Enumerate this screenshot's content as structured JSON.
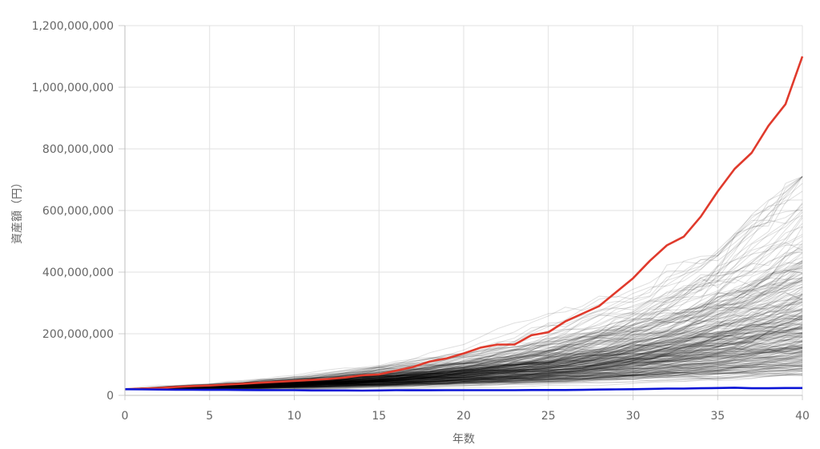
{
  "chart_data": {
    "type": "line",
    "xlabel": "年数",
    "ylabel": "資産額（円）",
    "xlim": [
      0,
      40
    ],
    "ylim": [
      0,
      1200000000
    ],
    "grid": true,
    "x_ticks": [
      "0",
      "5",
      "10",
      "15",
      "20",
      "25",
      "30",
      "35",
      "40"
    ],
    "y_ticks": [
      "0",
      "200,000,000",
      "400,000,000",
      "600,000,000",
      "800,000,000",
      "1,000,000,000",
      "1,200,000,000"
    ],
    "x": [
      0,
      1,
      2,
      3,
      4,
      5,
      6,
      7,
      8,
      9,
      10,
      11,
      12,
      13,
      14,
      15,
      16,
      17,
      18,
      19,
      20,
      21,
      22,
      23,
      24,
      25,
      26,
      27,
      28,
      29,
      30,
      31,
      32,
      33,
      34,
      35,
      36,
      37,
      38,
      39,
      40
    ],
    "series": [
      {
        "color": "#e03a2c",
        "values": [
          20000000,
          22000000,
          24000000,
          27000000,
          30000000,
          32000000,
          35000000,
          38000000,
          41000000,
          44000000,
          47000000,
          50000000,
          53000000,
          58000000,
          65000000,
          68000000,
          80000000,
          92000000,
          110000000,
          120000000,
          136000000,
          155000000,
          165000000,
          165000000,
          195000000,
          205000000,
          240000000,
          265000000,
          290000000,
          335000000,
          380000000,
          437000000,
          487000000,
          515000000,
          580000000,
          662000000,
          735000000,
          787000000,
          875000000,
          945000000,
          1100000000
        ]
      },
      {
        "color": "#0a14d6",
        "values": [
          20000000,
          19500000,
          19000000,
          18500000,
          18200000,
          18000000,
          17800000,
          17500000,
          17200000,
          17000000,
          16800000,
          16000000,
          16200000,
          16000000,
          15500000,
          16000000,
          17000000,
          16500000,
          16500000,
          17000000,
          17000000,
          17000000,
          17000000,
          17000000,
          17500000,
          17500000,
          17500000,
          18000000,
          19000000,
          19500000,
          20000000,
          21000000,
          22000000,
          22000000,
          23000000,
          24000000,
          25000000,
          23000000,
          23000000,
          24000000,
          24000000
        ]
      }
    ],
    "simulation_paths": {
      "count": 300,
      "color": "#000000",
      "start_value": 20000000,
      "median_final_value": 220000000,
      "min_final_value": 65000000,
      "max_final_value": 710000000
    }
  }
}
